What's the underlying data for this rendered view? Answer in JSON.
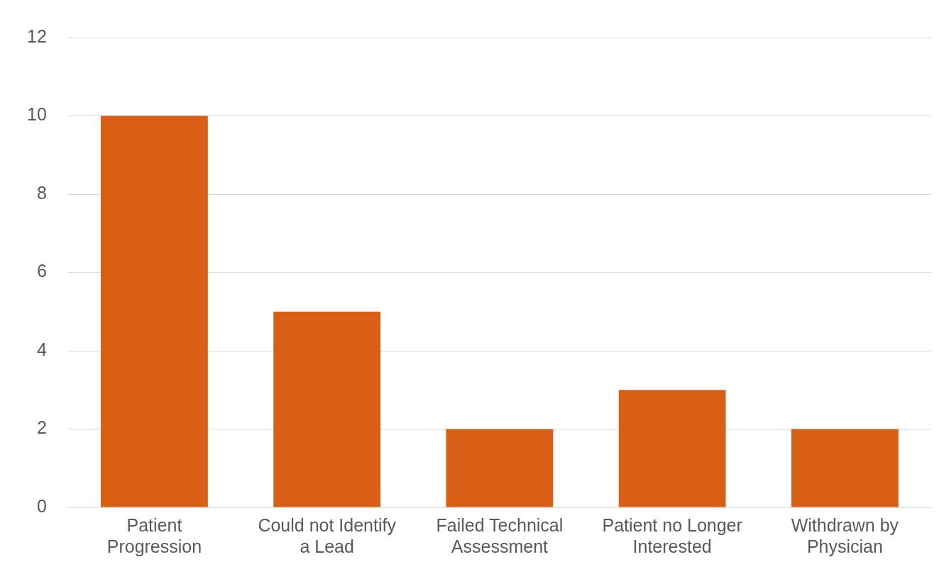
{
  "chart_data": {
    "type": "bar",
    "categories": [
      "Patient Progression",
      "Could not Identify a Lead",
      "Failed Technical Assessment",
      "Patient no Longer Interested",
      "Withdrawn by Physician"
    ],
    "values": [
      10,
      5,
      2,
      3,
      2
    ],
    "color": "#d95f17",
    "ylim": [
      0,
      12
    ],
    "yticks": [
      0,
      2,
      4,
      6,
      8,
      10,
      12
    ],
    "grid": "y",
    "legend": false
  }
}
